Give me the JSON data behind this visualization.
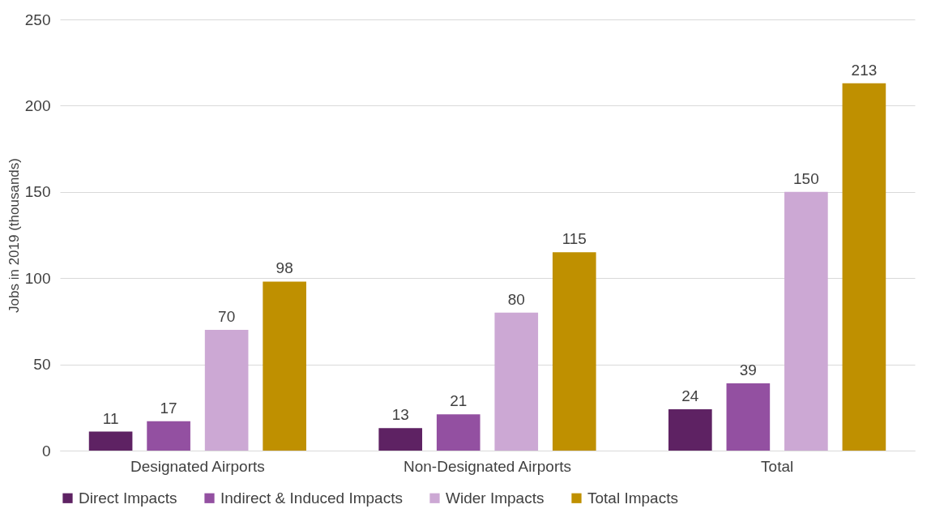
{
  "chart_data": {
    "type": "bar",
    "ylabel": "Jobs in 2019 (thousands)",
    "categories": [
      "Designated Airports",
      "Non-Designated Airports",
      "Total"
    ],
    "series": [
      {
        "name": "Direct Impacts",
        "color": "#5e2263",
        "values": [
          11,
          13,
          24
        ]
      },
      {
        "name": "Indirect & Induced Impacts",
        "color": "#9350a1",
        "values": [
          17,
          21,
          39
        ]
      },
      {
        "name": "Wider Impacts",
        "color": "#cca8d4",
        "values": [
          70,
          80,
          150
        ]
      },
      {
        "name": "Total Impacts",
        "color": "#bf9000",
        "values": [
          98,
          115,
          213
        ]
      }
    ],
    "ylim": [
      0,
      250
    ],
    "yticks": [
      0,
      50,
      100,
      150,
      200,
      250
    ],
    "grid": "y",
    "legend": "bottom",
    "data_labels": true
  }
}
